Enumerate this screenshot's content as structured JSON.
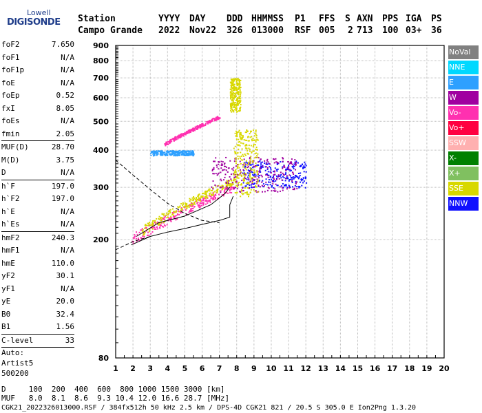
{
  "logo": {
    "line1": "Lowell",
    "line2": "DIGISONDE"
  },
  "header": {
    "cols": [
      {
        "label": "Station",
        "value": "Campo Grande"
      },
      {
        "label": "YYYY",
        "value": "2022"
      },
      {
        "label": "DAY",
        "value": "Nov22"
      },
      {
        "label": "DDD",
        "value": "326"
      },
      {
        "label": "HHMMSS",
        "value": "013000"
      },
      {
        "label": "P1",
        "value": "RSF"
      },
      {
        "label": "FFS",
        "value": "005"
      },
      {
        "label": "S",
        "value": "2"
      },
      {
        "label": "AXN",
        "value": "713"
      },
      {
        "label": "PPS",
        "value": "100"
      },
      {
        "label": "IGA",
        "value": "03+"
      },
      {
        "label": "PS",
        "value": "36"
      }
    ]
  },
  "params": {
    "group1": [
      {
        "k": "foF2",
        "v": "7.650"
      },
      {
        "k": "foF1",
        "v": "N/A"
      },
      {
        "k": "foF1p",
        "v": "N/A"
      },
      {
        "k": "foE",
        "v": "N/A"
      },
      {
        "k": "foEp",
        "v": "0.52"
      },
      {
        "k": "fxI",
        "v": "8.05"
      },
      {
        "k": "foEs",
        "v": "N/A"
      },
      {
        "k": "fmin",
        "v": "2.05"
      }
    ],
    "group2": [
      {
        "k": "MUF(D)",
        "v": "28.70"
      },
      {
        "k": "M(D)",
        "v": "3.75"
      },
      {
        "k": "D",
        "v": "N/A"
      }
    ],
    "group3": [
      {
        "k": "h`F",
        "v": "197.0"
      },
      {
        "k": "h`F2",
        "v": "197.0"
      },
      {
        "k": "h`E",
        "v": "N/A"
      },
      {
        "k": "h`Es",
        "v": "N/A"
      }
    ],
    "group4": [
      {
        "k": "hmF2",
        "v": "240.3"
      },
      {
        "k": "hmF1",
        "v": "N/A"
      },
      {
        "k": "hmE",
        "v": "110.0"
      },
      {
        "k": "yF2",
        "v": "30.1"
      },
      {
        "k": "yF1",
        "v": "N/A"
      },
      {
        "k": "yE",
        "v": "20.0"
      },
      {
        "k": "B0",
        "v": "32.4"
      },
      {
        "k": "B1",
        "v": "1.56"
      }
    ],
    "group5": [
      {
        "k": "C-level",
        "v": "33"
      }
    ],
    "auto": [
      "Auto:",
      "Artist5",
      "500200"
    ]
  },
  "legend": [
    {
      "label": "NoVal",
      "color": "#808080"
    },
    {
      "label": "NNE",
      "color": "#00d8ff"
    },
    {
      "label": "E",
      "color": "#2ea0ff"
    },
    {
      "label": "W",
      "color": "#a000a0"
    },
    {
      "label": "Vo-",
      "color": "#ff30b0"
    },
    {
      "label": "Vo+",
      "color": "#ff0040"
    },
    {
      "label": "SSW",
      "color": "#ffb0b0"
    },
    {
      "label": "X-",
      "color": "#008000"
    },
    {
      "label": "X+",
      "color": "#80c060"
    },
    {
      "label": "SSE",
      "color": "#d8d800"
    },
    {
      "label": "NNW",
      "color": "#1010ff"
    }
  ],
  "footer": {
    "d_line": "D     100  200  400  600  800 1000 1500 3000 [km]",
    "muf_line": "MUF   8.0  8.1  8.6  9.3 10.4 12.0 16.6 28.7 [MHz]",
    "info_line": "CGK21_2022326013000.RSF / 384fx512h 50 kHz 2.5 km / DPS-4D CGK21 821 / 20.5 S 305.0 E Ion2Png 1.3.20"
  },
  "chart_data": {
    "type": "scatter",
    "title": "",
    "xlabel": "",
    "ylabel": "",
    "xlim": [
      1,
      20
    ],
    "ylim": [
      80,
      900
    ],
    "y_scale": "log",
    "xticks": [
      1,
      2,
      3,
      4,
      5,
      6,
      7,
      8,
      9,
      10,
      11,
      12,
      13,
      14,
      15,
      16,
      17,
      18,
      19,
      20
    ],
    "yticks": [
      80,
      200,
      300,
      400,
      500,
      600,
      700,
      800,
      900
    ],
    "grid": true,
    "legend_position": "right",
    "clusters": [
      {
        "name": "O-trace low",
        "x": [
          1.9,
          7.8
        ],
        "y": [
          200,
          300
        ],
        "color": "#ff30b0"
      },
      {
        "name": "O-trace yellow",
        "x": [
          2.5,
          8.0
        ],
        "y": [
          215,
          320
        ],
        "color": "#d8d800"
      },
      {
        "name": "NNW cluster",
        "x": [
          8.3,
          12.0
        ],
        "y": [
          300,
          370
        ],
        "color": "#1010ff"
      },
      {
        "name": "W cluster",
        "x": [
          6.5,
          11.5
        ],
        "y": [
          290,
          380
        ],
        "color": "#a000a0"
      },
      {
        "name": "E horizontal",
        "x": [
          3.0,
          5.5
        ],
        "y": [
          385,
          400
        ],
        "color": "#2ea0ff"
      },
      {
        "name": "Multihop ramp",
        "x": [
          3.8,
          7.0
        ],
        "y": [
          420,
          520
        ],
        "color": "#ff30b0"
      },
      {
        "name": "SSE scatter",
        "x": [
          7.8,
          9.2
        ],
        "y": [
          280,
          470
        ],
        "color": "#d8d800"
      },
      {
        "name": "Near 8MHz high",
        "x": [
          7.6,
          8.2
        ],
        "y": [
          540,
          700
        ],
        "color": "#d8d800"
      }
    ],
    "profile_solid": [
      [
        1.9,
        192
      ],
      [
        3,
        205
      ],
      [
        4,
        212
      ],
      [
        5,
        218
      ],
      [
        6,
        225
      ],
      [
        7,
        232
      ],
      [
        7.6,
        238
      ],
      [
        7.6,
        262
      ],
      [
        7.8,
        280
      ]
    ],
    "profile_solid2": [
      [
        2.2,
        205
      ],
      [
        3.5,
        228
      ],
      [
        5,
        240
      ],
      [
        6.5,
        262
      ],
      [
        7.3,
        285
      ],
      [
        7.6,
        300
      ]
    ],
    "profile_dashed_top": [
      [
        1,
        370
      ],
      [
        2,
        330
      ],
      [
        3,
        295
      ],
      [
        4,
        265
      ],
      [
        5,
        245
      ],
      [
        6,
        232
      ],
      [
        7,
        228
      ]
    ],
    "profile_dashed_bottom": [
      [
        1,
        185
      ],
      [
        2,
        197
      ],
      [
        3,
        205
      ]
    ]
  }
}
